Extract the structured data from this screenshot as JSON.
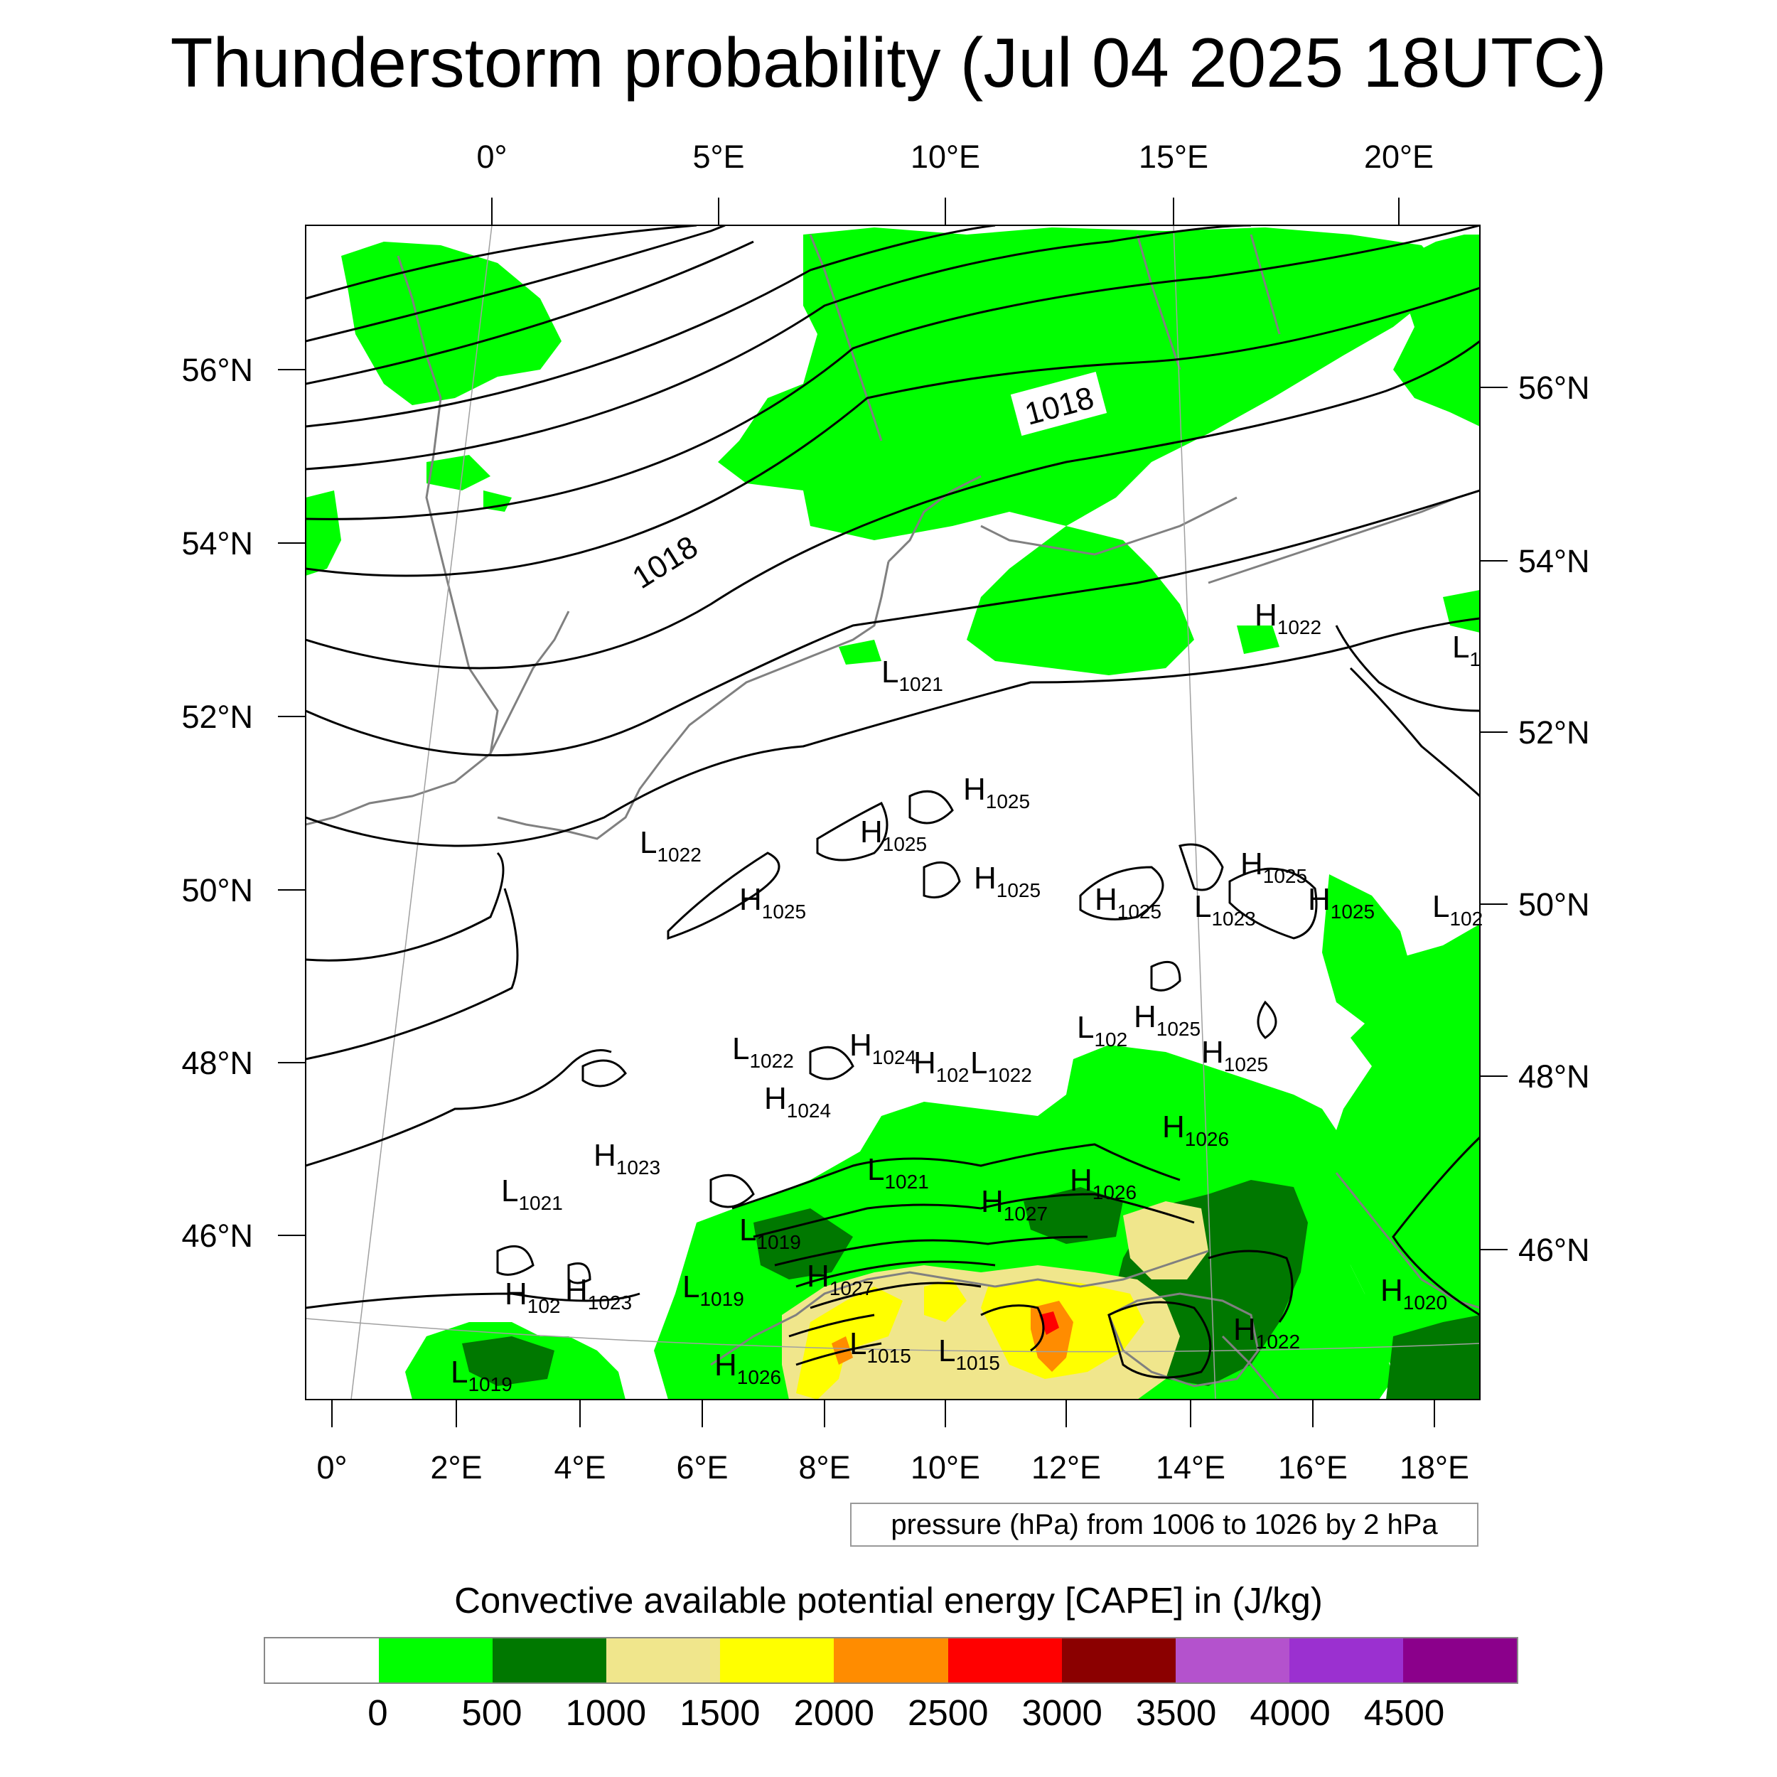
{
  "title": "Thunderstorm probability (Jul 04 2025 18UTC)",
  "map": {
    "top_lon_labels": [
      "0°",
      "5°E",
      "10°E",
      "15°E",
      "20°E"
    ],
    "bottom_lon_labels": [
      "0°",
      "2°E",
      "4°E",
      "6°E",
      "8°E",
      "10°E",
      "12°E",
      "14°E",
      "16°E",
      "18°E"
    ],
    "left_lat_labels": [
      "56°N",
      "54°N",
      "52°N",
      "50°N",
      "48°N",
      "46°N"
    ],
    "right_lat_labels": [
      "56°N",
      "54°N",
      "52°N",
      "50°N",
      "48°N",
      "46°N"
    ],
    "isobar_labels": [
      "1018",
      "1018"
    ],
    "pressure_centers": [
      {
        "type": "H",
        "value": "1022"
      },
      {
        "type": "L",
        "value": "1021"
      },
      {
        "type": "H",
        "value": "1025"
      },
      {
        "type": "H",
        "value": "1025"
      },
      {
        "type": "L",
        "value": "1022"
      },
      {
        "type": "H",
        "value": "1025"
      },
      {
        "type": "H",
        "value": "1025"
      },
      {
        "type": "H",
        "value": "1025"
      },
      {
        "type": "L",
        "value": "1023"
      },
      {
        "type": "H",
        "value": "1025"
      },
      {
        "type": "H",
        "value": "1025"
      },
      {
        "type": "L",
        "value": "102"
      },
      {
        "type": "H",
        "value": "1025"
      },
      {
        "type": "H",
        "value": "1025"
      },
      {
        "type": "L",
        "value": "1022"
      },
      {
        "type": "H",
        "value": "1024"
      },
      {
        "type": "H",
        "value": "102"
      },
      {
        "type": "L",
        "value": "1022"
      },
      {
        "type": "H",
        "value": "1024"
      },
      {
        "type": "H",
        "value": "1026"
      },
      {
        "type": "H",
        "value": "1023"
      },
      {
        "type": "L",
        "value": "1021"
      },
      {
        "type": "L",
        "value": "1021"
      },
      {
        "type": "H",
        "value": "1026"
      },
      {
        "type": "H",
        "value": "1027"
      },
      {
        "type": "L",
        "value": "1019"
      },
      {
        "type": "H",
        "value": "1027"
      },
      {
        "type": "L",
        "value": "1019"
      },
      {
        "type": "H",
        "value": "102"
      },
      {
        "type": "H",
        "value": "1023"
      },
      {
        "type": "H",
        "value": "1020"
      },
      {
        "type": "H",
        "value": "1022"
      },
      {
        "type": "L",
        "value": "1015"
      },
      {
        "type": "L",
        "value": "1015"
      },
      {
        "type": "H",
        "value": "1026"
      },
      {
        "type": "L",
        "value": "1019"
      },
      {
        "type": "L",
        "value": "1"
      },
      {
        "type": "L",
        "value": "102"
      }
    ]
  },
  "pressure_note": "pressure (hPa) from 1006 to 1026 by 2 hPa",
  "cape_title": "Convective available potential energy [CAPE] in (J/kg)",
  "colorbar": {
    "colors": [
      "#ffffff",
      "#00ff00",
      "#007800",
      "#f0e68c",
      "#ffff00",
      "#ff8c00",
      "#ff0000",
      "#8b0000",
      "#b452cd",
      "#9b30d0",
      "#8b008b"
    ],
    "labels": [
      "0",
      "500",
      "1000",
      "1500",
      "2000",
      "2500",
      "3000",
      "3500",
      "4000",
      "4500"
    ]
  }
}
